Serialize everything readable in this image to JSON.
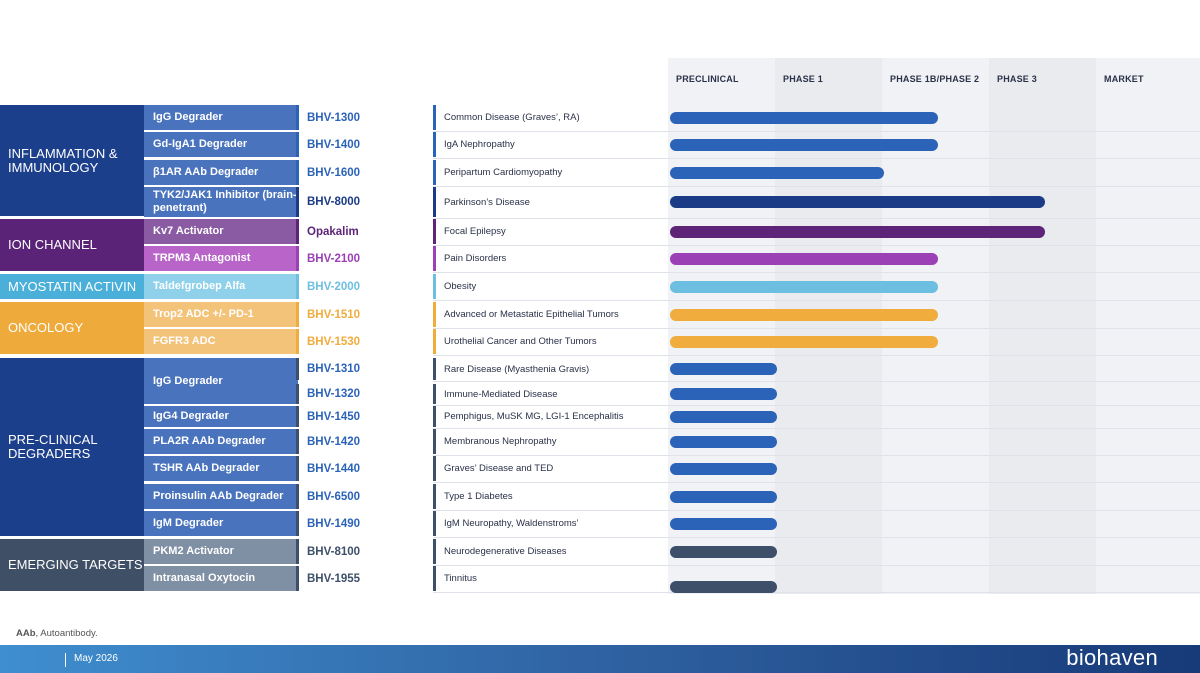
{
  "phases": [
    "PRECLINICAL",
    "PHASE 1",
    "PHASE 1B/PHASE 2",
    "PHASE 3",
    "MARKET"
  ],
  "categories": [
    {
      "label": "INFLAMMATION & IMMUNOLOGY",
      "color": "#1c3f8c"
    },
    {
      "label": "ION CHANNEL",
      "color": "#5a2377"
    },
    {
      "label": "MYOSTATIN ACTIVIN",
      "color": "#4ab0d9"
    },
    {
      "label": "ONCOLOGY",
      "color": "#efaa3c"
    },
    {
      "label": "PRE-CLINICAL DEGRADERS",
      "color": "#1c3f8c"
    },
    {
      "label": "EMERGING TARGETS",
      "color": "#3f4f66"
    }
  ],
  "programs": [
    {
      "drug": "IgG Degrader",
      "code": "BHV-1300",
      "indication": "Common Disease (Graves’, RA)"
    },
    {
      "drug": "Gd-IgA1 Degrader",
      "code": "BHV-1400",
      "indication": "IgA Nephropathy"
    },
    {
      "drug": "β1AR AAb Degrader",
      "code": "BHV-1600",
      "indication": "Peripartum Cardiomyopathy"
    },
    {
      "drug": "TYK2/JAK1 Inhibitor (brain-penetrant)",
      "code": "BHV-8000",
      "indication": "Parkinson’s Disease"
    },
    {
      "drug": "Kv7 Activator",
      "code": "Opakalim",
      "indication": "Focal Epilepsy"
    },
    {
      "drug": "TRPM3 Antagonist",
      "code": "BHV-2100",
      "indication": "Pain Disorders"
    },
    {
      "drug": "Taldefgrobep Alfa",
      "code": "BHV-2000",
      "indication": "Obesity"
    },
    {
      "drug": "Trop2 ADC +/- PD-1",
      "code": "BHV-1510",
      "indication": "Advanced or Metastatic Epithelial Tumors"
    },
    {
      "drug": "FGFR3 ADC",
      "code": "BHV-1530",
      "indication": "Urothelial Cancer and Other Tumors"
    },
    {
      "drug": "IgG Degrader",
      "code": "BHV-1310",
      "indication": "Rare Disease (Myasthenia Gravis)"
    },
    {
      "drug": "",
      "code": "BHV-1320",
      "indication": "Immune-Mediated Disease"
    },
    {
      "drug": "IgG4 Degrader",
      "code": "BHV-1450",
      "indication": "Pemphigus, MuSK MG, LGI-1 Encephalitis"
    },
    {
      "drug": "PLA2R AAb Degrader",
      "code": "BHV-1420",
      "indication": "Membranous Nephropathy"
    },
    {
      "drug": "TSHR AAb Degrader",
      "code": "BHV-1440",
      "indication": "Graves’ Disease and TED"
    },
    {
      "drug": "Proinsulin AAb Degrader",
      "code": "BHV-6500",
      "indication": "Type 1 Diabetes"
    },
    {
      "drug": "IgM Degrader",
      "code": "BHV-1490",
      "indication": "IgM Neuropathy, Waldenstroms’"
    },
    {
      "drug": "PKM2 Activator",
      "code": "BHV-8100",
      "indication": "Neurodegenerative Diseases"
    },
    {
      "drug": "Intranasal Oxytocin",
      "code": "BHV-1955",
      "indication": "Tinnitus"
    }
  ],
  "chart_data": {
    "type": "bar",
    "orientation": "horizontal",
    "x_axis_categories": [
      "PRECLINICAL",
      "PHASE 1",
      "PHASE 1B/PHASE 2",
      "PHASE 3",
      "MARKET"
    ],
    "categories": [
      "BHV-1300",
      "BHV-1400",
      "BHV-1600",
      "BHV-8000",
      "Opakalim",
      "BHV-2100",
      "BHV-2000",
      "BHV-1510",
      "BHV-1530",
      "BHV-1310",
      "BHV-1320",
      "BHV-1450",
      "BHV-1420",
      "BHV-1440",
      "BHV-6500",
      "BHV-1490",
      "BHV-8100",
      "BHV-1955"
    ],
    "values": [
      2.5,
      2.5,
      2.0,
      3.5,
      3.5,
      2.5,
      2.5,
      2.5,
      2.5,
      1.0,
      1.0,
      1.0,
      1.0,
      1.0,
      1.0,
      1.0,
      1.0,
      1.0
    ],
    "bar_colors": [
      "#2b63b8",
      "#2b63b8",
      "#2b63b8",
      "#1b3b86",
      "#5d2478",
      "#9b40b5",
      "#6cbfe0",
      "#f0ac3c",
      "#f0ac3c",
      "#2b63b8",
      "#2b63b8",
      "#2b63b8",
      "#2b63b8",
      "#2b63b8",
      "#2b63b8",
      "#2b63b8",
      "#3e4f6a",
      "#3e4f6a"
    ]
  },
  "footnote": {
    "abbr": "AAb",
    "text": ", Autoantibody."
  },
  "footer": {
    "date": "May 2026",
    "logo": "biohaven"
  }
}
